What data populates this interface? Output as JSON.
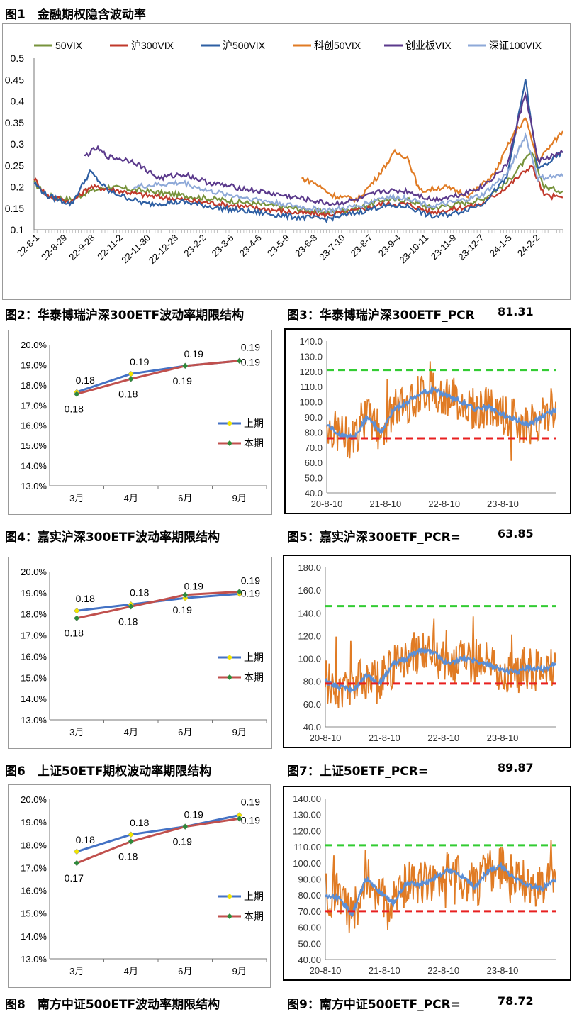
{
  "titles": {
    "fig1": "图1　金融期权隐含波动率",
    "fig2": "图2：华泰博瑞沪深300ETF波动率期限结构",
    "fig3": "图3：华泰博瑞沪深300ETF_PCR",
    "fig3_val": "81.31",
    "fig4": "图4：嘉实沪深300ETF波动率期限结构",
    "fig5": "图5：嘉实沪深300ETF_PCR=",
    "fig5_val": "63.85",
    "fig6": "图6　上证50ETF期权波动率期限结构",
    "fig7": "图7：上证50ETF_PCR=",
    "fig7_val": "89.87",
    "fig8": "图8　南方中证500ETF波动率期限结构",
    "fig9": "图9：南方中证500ETF_PCR=",
    "fig9_val": "78.72"
  },
  "chart_data": [
    {
      "id": "fig1",
      "type": "line",
      "ylim": [
        0.1,
        0.5
      ],
      "yticks": [
        "0.1",
        "0.15",
        "0.2",
        "0.25",
        "0.3",
        "0.35",
        "0.4",
        "0.45",
        "0.5"
      ],
      "xticks": [
        "22-8-1",
        "22-8-29",
        "22-9-28",
        "22-11-2",
        "22-11-30",
        "22-12-28",
        "23-2-2",
        "23-3-6",
        "23-4-6",
        "23-5-9",
        "23-6-8",
        "23-7-10",
        "23-8-7",
        "23-9-4",
        "23-10-11",
        "23-11-9",
        "23-12-7",
        "24-1-5",
        "24-2-2"
      ],
      "legend_position": "top",
      "series": [
        {
          "name": "50VIX",
          "color": "#77933c",
          "keyframes": [
            [
              0,
              0.21
            ],
            [
              2,
              0.18
            ],
            [
              6,
              0.17
            ],
            [
              9,
              0.19
            ],
            [
              12,
              0.2
            ],
            [
              18,
              0.19
            ],
            [
              24,
              0.18
            ],
            [
              30,
              0.17
            ],
            [
              36,
              0.16
            ],
            [
              42,
              0.15
            ],
            [
              47,
              0.14
            ],
            [
              52,
              0.15
            ],
            [
              56,
              0.17
            ],
            [
              60,
              0.17
            ],
            [
              64,
              0.15
            ],
            [
              68,
              0.16
            ],
            [
              72,
              0.17
            ],
            [
              76,
              0.21
            ],
            [
              80,
              0.28
            ],
            [
              82,
              0.2
            ],
            [
              85,
              0.19
            ]
          ]
        },
        {
          "name": "沪300VIX",
          "color": "#c0392b",
          "keyframes": [
            [
              0,
              0.22
            ],
            [
              2,
              0.18
            ],
            [
              6,
              0.165
            ],
            [
              9,
              0.2
            ],
            [
              12,
              0.195
            ],
            [
              18,
              0.18
            ],
            [
              24,
              0.17
            ],
            [
              30,
              0.16
            ],
            [
              36,
              0.15
            ],
            [
              42,
              0.14
            ],
            [
              47,
              0.135
            ],
            [
              52,
              0.145
            ],
            [
              56,
              0.16
            ],
            [
              60,
              0.16
            ],
            [
              64,
              0.14
            ],
            [
              68,
              0.15
            ],
            [
              72,
              0.16
            ],
            [
              76,
              0.2
            ],
            [
              80,
              0.25
            ],
            [
              82,
              0.18
            ],
            [
              85,
              0.175
            ]
          ]
        },
        {
          "name": "沪500VIX",
          "color": "#2e5fa3",
          "keyframes": [
            [
              0,
              0.21
            ],
            [
              2,
              0.18
            ],
            [
              6,
              0.16
            ],
            [
              9,
              0.235
            ],
            [
              12,
              0.19
            ],
            [
              18,
              0.16
            ],
            [
              24,
              0.165
            ],
            [
              30,
              0.15
            ],
            [
              36,
              0.14
            ],
            [
              42,
              0.13
            ],
            [
              47,
              0.125
            ],
            [
              52,
              0.14
            ],
            [
              56,
              0.155
            ],
            [
              60,
              0.155
            ],
            [
              64,
              0.13
            ],
            [
              68,
              0.14
            ],
            [
              72,
              0.16
            ],
            [
              76,
              0.22
            ],
            [
              79,
              0.45
            ],
            [
              81,
              0.24
            ],
            [
              85,
              0.28
            ]
          ]
        },
        {
          "name": "科创50VIX",
          "color": "#e07b24",
          "keyframes": [
            [
              43,
              0.22
            ],
            [
              45,
              0.21
            ],
            [
              48,
              0.18
            ],
            [
              52,
              0.17
            ],
            [
              55,
              0.22
            ],
            [
              58,
              0.28
            ],
            [
              60,
              0.27
            ],
            [
              62,
              0.19
            ],
            [
              66,
              0.2
            ],
            [
              70,
              0.18
            ],
            [
              74,
              0.23
            ],
            [
              77,
              0.32
            ],
            [
              79,
              0.36
            ],
            [
              81,
              0.26
            ],
            [
              85,
              0.33
            ]
          ]
        },
        {
          "name": "创业板VIX",
          "color": "#5b3a8c",
          "keyframes": [
            [
              8,
              0.27
            ],
            [
              10,
              0.29
            ],
            [
              12,
              0.27
            ],
            [
              16,
              0.26
            ],
            [
              20,
              0.22
            ],
            [
              24,
              0.23
            ],
            [
              28,
              0.21
            ],
            [
              32,
              0.2
            ],
            [
              36,
              0.19
            ],
            [
              40,
              0.18
            ],
            [
              44,
              0.17
            ],
            [
              48,
              0.16
            ],
            [
              52,
              0.17
            ],
            [
              56,
              0.19
            ],
            [
              60,
              0.19
            ],
            [
              64,
              0.17
            ],
            [
              68,
              0.18
            ],
            [
              72,
              0.2
            ],
            [
              76,
              0.25
            ],
            [
              79,
              0.42
            ],
            [
              81,
              0.26
            ],
            [
              85,
              0.28
            ]
          ]
        },
        {
          "name": "深证100VIX",
          "color": "#8ea9d8",
          "keyframes": [
            [
              16,
              0.2
            ],
            [
              20,
              0.205
            ],
            [
              24,
              0.21
            ],
            [
              28,
              0.19
            ],
            [
              32,
              0.18
            ],
            [
              36,
              0.17
            ],
            [
              40,
              0.16
            ],
            [
              44,
              0.15
            ],
            [
              48,
              0.145
            ],
            [
              52,
              0.155
            ],
            [
              56,
              0.175
            ],
            [
              60,
              0.175
            ],
            [
              64,
              0.155
            ],
            [
              68,
              0.165
            ],
            [
              72,
              0.18
            ],
            [
              76,
              0.23
            ],
            [
              79,
              0.32
            ],
            [
              81,
              0.22
            ],
            [
              85,
              0.225
            ]
          ]
        }
      ]
    },
    {
      "id": "fig2",
      "type": "line",
      "categories": [
        "3月",
        "4月",
        "6月",
        "9月"
      ],
      "yticks": [
        "13.0%",
        "14.0%",
        "15.0%",
        "16.0%",
        "17.0%",
        "18.0%",
        "19.0%",
        "20.0%"
      ],
      "ylim": [
        13.0,
        20.0
      ],
      "legend_position": "right",
      "series": [
        {
          "name": "上期",
          "color": "#4472c4",
          "marker": "#f2e600",
          "values": [
            17.65,
            18.55,
            18.95,
            19.2
          ],
          "labels": [
            "0.18",
            "0.19",
            "0.19",
            "0.19"
          ]
        },
        {
          "name": "本期",
          "color": "#c0504d",
          "marker": "#2e8b3a",
          "values": [
            17.55,
            18.3,
            18.95,
            19.2
          ],
          "labels": [
            "0.18",
            "0.18",
            "0.19",
            "0.19"
          ]
        }
      ]
    },
    {
      "id": "fig3",
      "type": "line",
      "ylim": [
        40,
        140
      ],
      "yticks": [
        "40.0",
        "50.0",
        "60.0",
        "70.0",
        "80.0",
        "90.0",
        "100.0",
        "110.0",
        "120.0",
        "130.0",
        "140.0"
      ],
      "xticks": [
        "20-8-10",
        "21-8-10",
        "22-8-10",
        "23-8-10"
      ],
      "upper_line": 121,
      "lower_line": 76,
      "series_colors": {
        "pcr": "#e07b24",
        "ma": "#5b8fd6",
        "upper": "#33cc33",
        "lower": "#e82020"
      }
    },
    {
      "id": "fig4",
      "type": "line",
      "categories": [
        "3月",
        "4月",
        "6月",
        "9月"
      ],
      "yticks": [
        "13.0%",
        "14.0%",
        "15.0%",
        "16.0%",
        "17.0%",
        "18.0%",
        "19.0%",
        "20.0%"
      ],
      "ylim": [
        13.0,
        20.0
      ],
      "legend_position": "right",
      "series": [
        {
          "name": "上期",
          "color": "#4472c4",
          "marker": "#f2e600",
          "values": [
            18.15,
            18.45,
            18.75,
            18.95
          ],
          "labels": [
            "0.18",
            "0.18",
            "0.19",
            "0.19"
          ]
        },
        {
          "name": "本期",
          "color": "#c0504d",
          "marker": "#2e8b3a",
          "values": [
            17.8,
            18.35,
            18.9,
            19.05
          ],
          "labels": [
            "0.18",
            "0.18",
            "0.19",
            "0.19"
          ]
        }
      ]
    },
    {
      "id": "fig5",
      "type": "line",
      "ylim": [
        40,
        180
      ],
      "yticks": [
        "40.0",
        "60.0",
        "80.0",
        "100.0",
        "120.0",
        "140.0",
        "160.0",
        "180.0"
      ],
      "xticks": [
        "20-8-10",
        "21-8-10",
        "22-8-10",
        "23-8-10"
      ],
      "upper_line": 146,
      "lower_line": 78,
      "series_colors": {
        "pcr": "#e07b24",
        "ma": "#5b8fd6",
        "upper": "#33cc33",
        "lower": "#e82020"
      }
    },
    {
      "id": "fig6",
      "type": "line",
      "categories": [
        "3月",
        "4月",
        "6月",
        "9月"
      ],
      "yticks": [
        "13.0%",
        "14.0%",
        "15.0%",
        "16.0%",
        "17.0%",
        "18.0%",
        "19.0%",
        "20.0%"
      ],
      "ylim": [
        13.0,
        20.0
      ],
      "legend_position": "right",
      "series": [
        {
          "name": "上期",
          "color": "#4472c4",
          "marker": "#f2e600",
          "values": [
            17.7,
            18.45,
            18.8,
            19.3
          ],
          "labels": [
            "0.18",
            "0.18",
            "0.19",
            "0.19"
          ]
        },
        {
          "name": "本期",
          "color": "#c0504d",
          "marker": "#2e8b3a",
          "values": [
            17.2,
            18.15,
            18.8,
            19.15
          ],
          "labels": [
            "0.17",
            "0.18",
            "0.19",
            "0.19"
          ]
        }
      ]
    },
    {
      "id": "fig7",
      "type": "line",
      "ylim": [
        40,
        140
      ],
      "yticks": [
        "40.00",
        "50.00",
        "60.00",
        "70.00",
        "80.00",
        "90.00",
        "100.00",
        "110.00",
        "120.00",
        "130.00",
        "140.00"
      ],
      "xticks": [
        "20-8-10",
        "21-8-10",
        "22-8-10",
        "23-8-10"
      ],
      "upper_line": 111,
      "lower_line": 70,
      "series_colors": {
        "pcr": "#e07b24",
        "ma": "#5b8fd6",
        "upper": "#33cc33",
        "lower": "#e82020"
      }
    }
  ]
}
